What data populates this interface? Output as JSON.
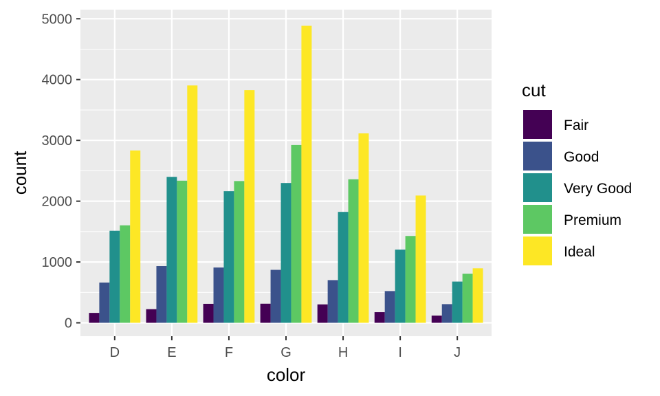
{
  "chart_data": {
    "type": "bar",
    "xlabel": "color",
    "ylabel": "count",
    "categories": [
      "D",
      "E",
      "F",
      "G",
      "H",
      "I",
      "J"
    ],
    "ylim": [
      -220,
      5150
    ],
    "yticks": [
      0,
      1000,
      2000,
      3000,
      4000,
      5000
    ],
    "ytick_labels": [
      "0",
      "1000",
      "2000",
      "3000",
      "4000",
      "5000"
    ],
    "grid": true,
    "legend_position": "right",
    "legend_title": "cut",
    "series": [
      {
        "name": "Fair",
        "color": "#440154",
        "values": [
          163,
          224,
          312,
          314,
          303,
          175,
          119
        ]
      },
      {
        "name": "Good",
        "color": "#3B528B",
        "values": [
          662,
          933,
          909,
          871,
          702,
          522,
          307
        ]
      },
      {
        "name": "Very Good",
        "color": "#21908C",
        "values": [
          1513,
          2400,
          2164,
          2299,
          1824,
          1204,
          678
        ]
      },
      {
        "name": "Premium",
        "color": "#5DC863",
        "values": [
          1603,
          2337,
          2331,
          2924,
          2360,
          1428,
          808
        ]
      },
      {
        "name": "Ideal",
        "color": "#FDE725",
        "values": [
          2834,
          3903,
          3826,
          4884,
          3115,
          2093,
          896
        ]
      }
    ]
  }
}
